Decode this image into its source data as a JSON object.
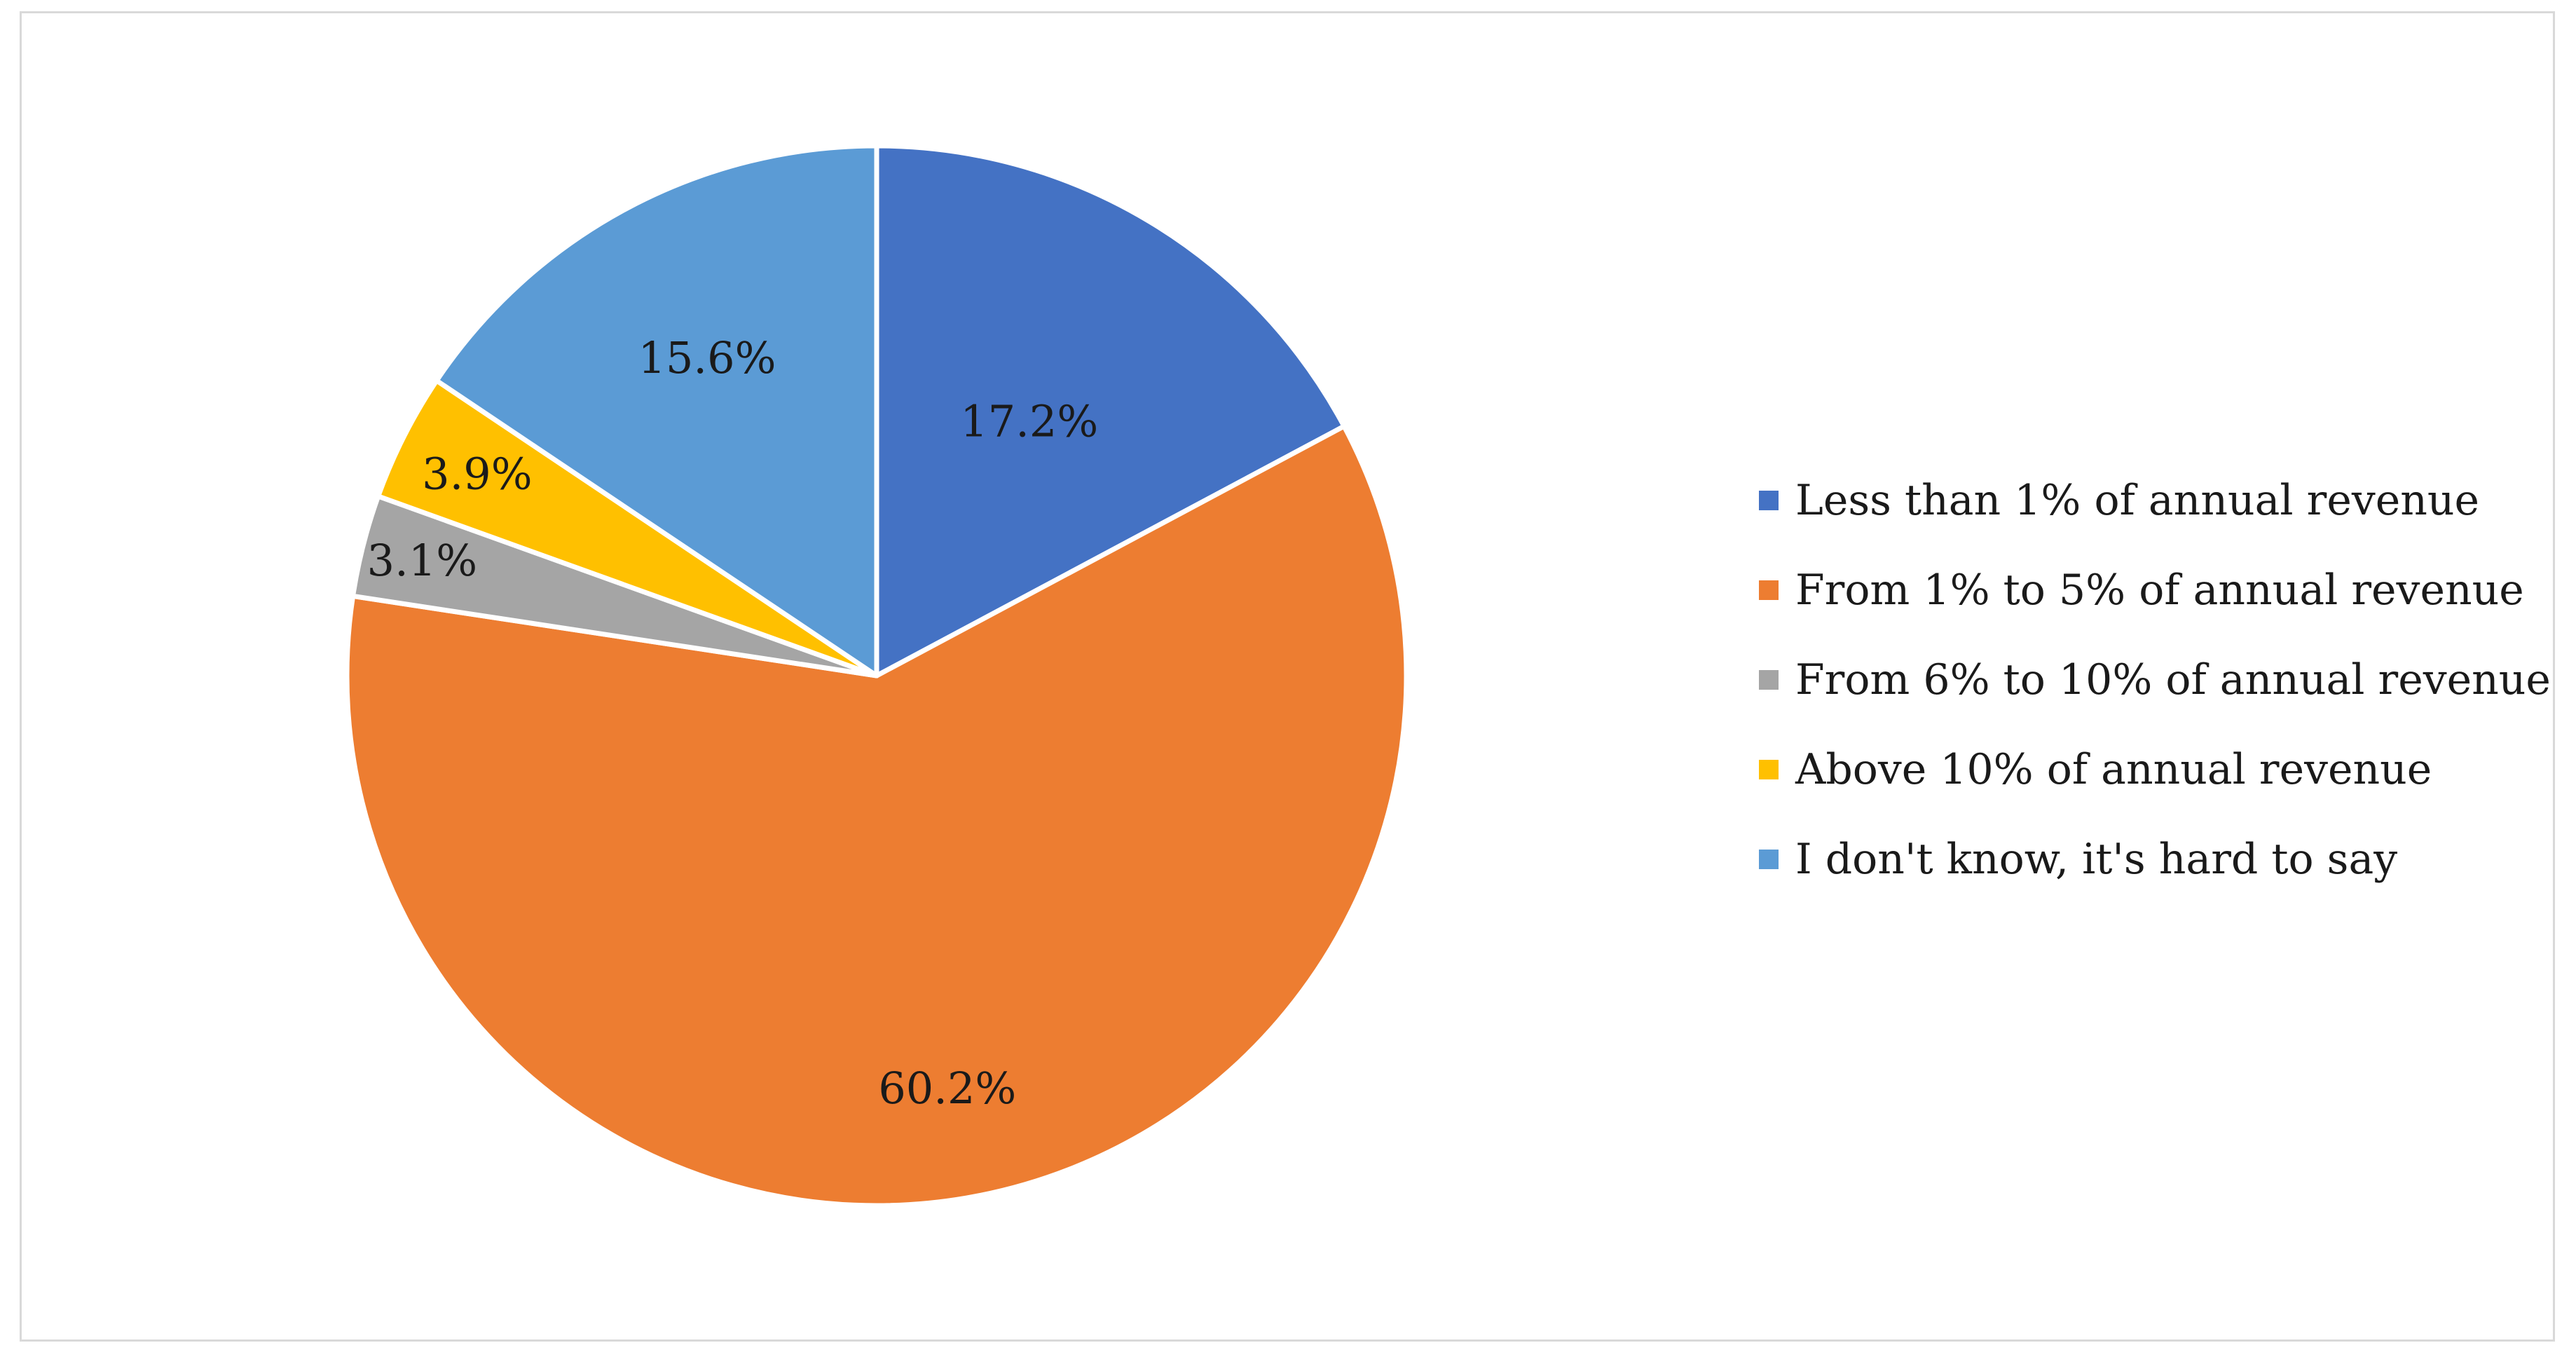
{
  "chart_data": {
    "type": "pie",
    "title": "",
    "start_angle_deg": 0,
    "direction": "clockwise",
    "slices": [
      {
        "label": "Less than 1% of annual revenue",
        "value": 17.2,
        "display": "17.2%",
        "color": "#4472C4"
      },
      {
        "label": "From 1% to 5% of annual revenue",
        "value": 60.2,
        "display": "60.2%",
        "color": "#ED7D31"
      },
      {
        "label": "From 6% to 10% of annual revenue",
        "value": 3.1,
        "display": "3.1%",
        "color": "#A5A5A5"
      },
      {
        "label": "Above 10% of annual revenue",
        "value": 3.9,
        "display": "3.9%",
        "color": "#FFC000"
      },
      {
        "label": "I don't know, it's hard to say",
        "value": 15.6,
        "display": "15.6%",
        "color": "#5B9BD5"
      }
    ],
    "legend_position": "right"
  }
}
